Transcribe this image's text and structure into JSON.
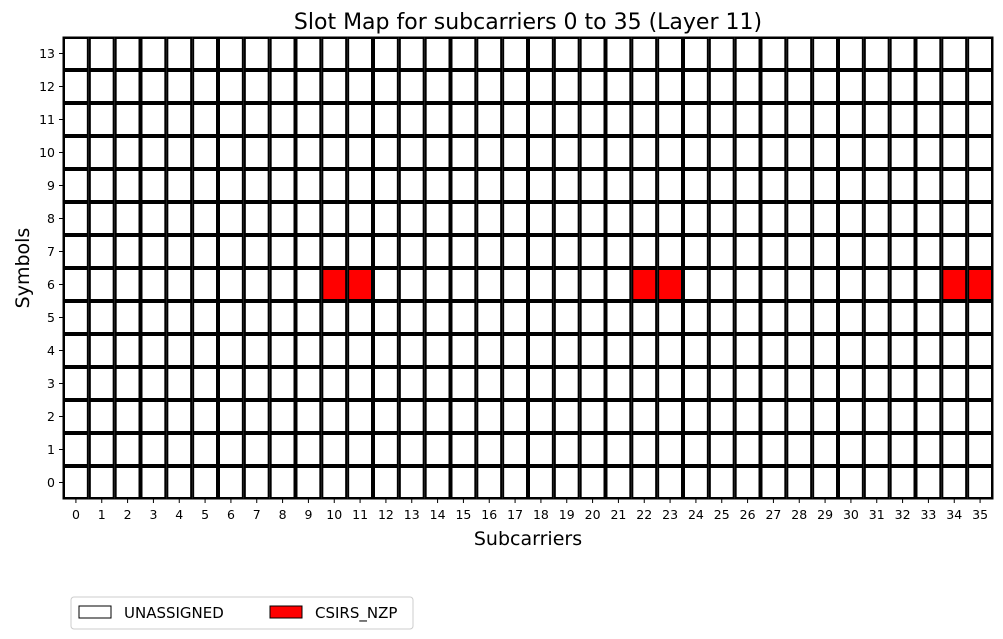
{
  "chart_data": {
    "type": "heatmap",
    "title": "Slot Map for subcarriers 0 to 35 (Layer 11)",
    "xlabel": "Subcarriers",
    "ylabel": "Symbols",
    "x": [
      0,
      1,
      2,
      3,
      4,
      5,
      6,
      7,
      8,
      9,
      10,
      11,
      12,
      13,
      14,
      15,
      16,
      17,
      18,
      19,
      20,
      21,
      22,
      23,
      24,
      25,
      26,
      27,
      28,
      29,
      30,
      31,
      32,
      33,
      34,
      35
    ],
    "y": [
      0,
      1,
      2,
      3,
      4,
      5,
      6,
      7,
      8,
      9,
      10,
      11,
      12,
      13
    ],
    "xlim": [
      0,
      35
    ],
    "ylim": [
      0,
      13
    ],
    "grid": false,
    "default_category": "UNASSIGNED",
    "assigned_cells": [
      {
        "subcarrier": 10,
        "symbol": 6,
        "category": "CSIRS_NZP"
      },
      {
        "subcarrier": 11,
        "symbol": 6,
        "category": "CSIRS_NZP"
      },
      {
        "subcarrier": 22,
        "symbol": 6,
        "category": "CSIRS_NZP"
      },
      {
        "subcarrier": 23,
        "symbol": 6,
        "category": "CSIRS_NZP"
      },
      {
        "subcarrier": 34,
        "symbol": 6,
        "category": "CSIRS_NZP"
      },
      {
        "subcarrier": 35,
        "symbol": 6,
        "category": "CSIRS_NZP"
      }
    ],
    "legend": {
      "placement": "bottom-left",
      "entries": [
        {
          "label": "UNASSIGNED",
          "color": "#ffffff"
        },
        {
          "label": "CSIRS_NZP",
          "color": "#ff0000"
        }
      ]
    },
    "colors": {
      "UNASSIGNED": "#ffffff",
      "CSIRS_NZP": "#ff0000",
      "cell_border": "#000000"
    }
  }
}
